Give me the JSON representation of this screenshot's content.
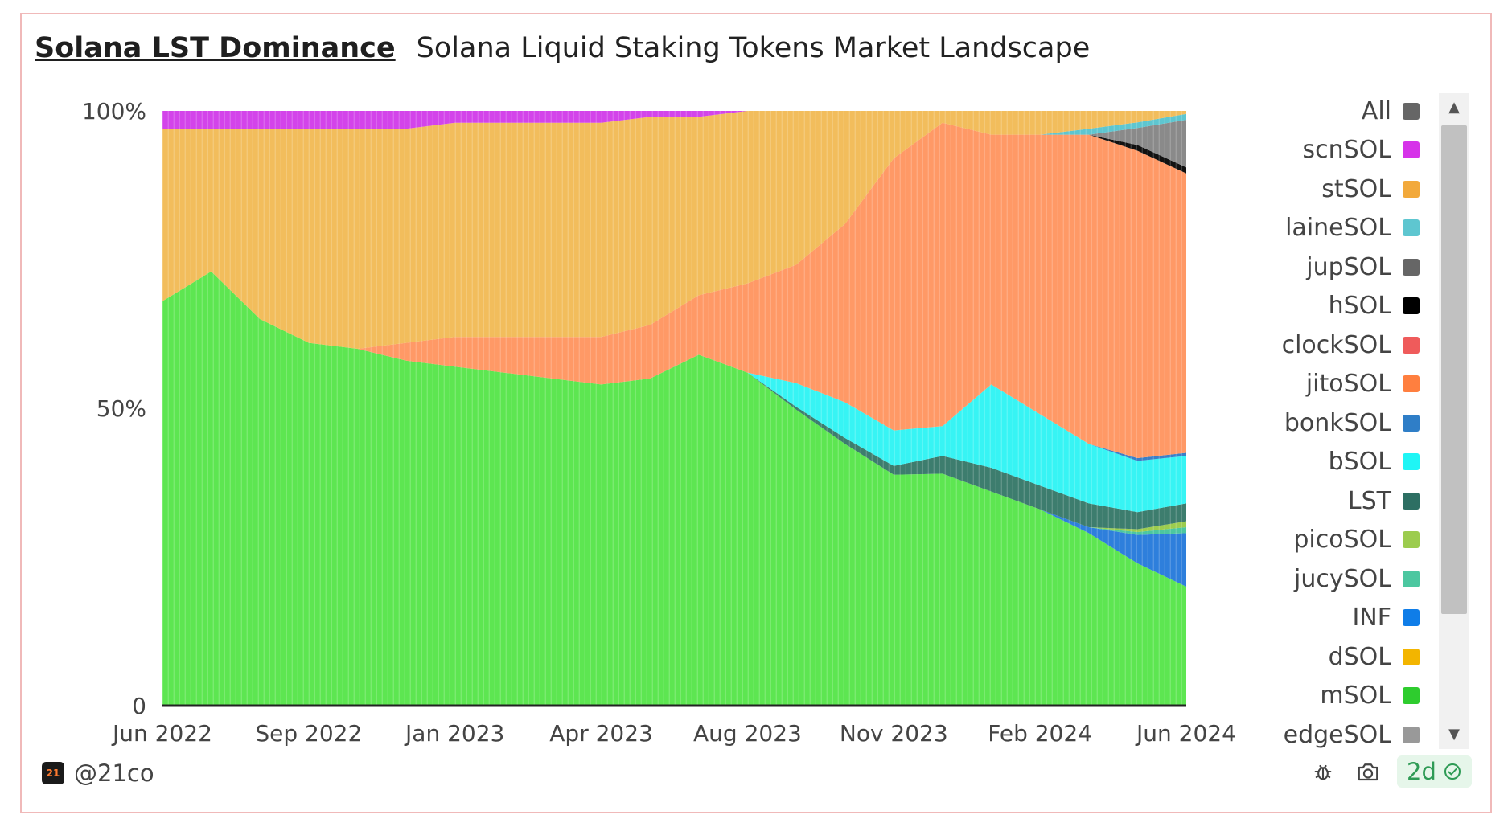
{
  "header": {
    "title": "Solana LST Dominance",
    "subtitle": "Solana Liquid Staking Tokens Market Landscape"
  },
  "chart_data": {
    "type": "area",
    "stacking": "percent",
    "title": "Solana LST Dominance",
    "subtitle": "Solana Liquid Staking Tokens Market Landscape",
    "xlabel": "",
    "ylabel": "",
    "ylim": [
      0,
      100
    ],
    "y_ticks": [
      "0",
      "50%",
      "100%"
    ],
    "y_tick_values": [
      0,
      50,
      100
    ],
    "x_tick_labels": [
      "Jun 2022",
      "Sep 2022",
      "Jan 2023",
      "Apr 2023",
      "Aug 2023",
      "Nov 2023",
      "Feb 2024",
      "Jun 2024"
    ],
    "x_tick_positions": [
      0,
      3,
      6,
      9,
      12,
      15,
      18,
      21
    ],
    "x": [
      "Jun 2022",
      "Jul 2022",
      "Aug 2022",
      "Sep 2022",
      "Oct 2022",
      "Dec 2022",
      "Jan 2023",
      "Feb 2023",
      "Mar 2023",
      "Apr 2023",
      "May 2023",
      "Jul 2023",
      "Aug 2023",
      "Sep 2023",
      "Oct 2023",
      "Nov 2023",
      "Dec 2023",
      "Jan 2024",
      "Feb 2024",
      "Mar 2024",
      "Apr 2024",
      "Jun 2024"
    ],
    "series": [
      {
        "name": "mSOL",
        "color": "#5de651",
        "values": [
          68,
          73,
          65,
          61,
          60,
          58,
          57,
          56,
          55,
          54,
          55,
          59,
          56,
          50,
          44,
          39,
          39,
          36,
          33,
          29,
          25,
          20
        ]
      },
      {
        "name": "INF",
        "color": "#2e7fdc",
        "values": [
          0,
          0,
          0,
          0,
          0,
          0,
          0,
          0,
          0,
          0,
          0,
          0,
          0,
          0,
          0,
          0,
          0,
          0,
          0,
          1,
          5,
          9
        ]
      },
      {
        "name": "jucySOL",
        "color": "#4cc7a0",
        "values": [
          0,
          0,
          0,
          0,
          0,
          0,
          0,
          0,
          0,
          0,
          0,
          0,
          0,
          0,
          0,
          0,
          0,
          0,
          0,
          0,
          0.5,
          1
        ]
      },
      {
        "name": "picoSOL",
        "color": "#9ccc4e",
        "values": [
          0,
          0,
          0,
          0,
          0,
          0,
          0,
          0,
          0,
          0,
          0,
          0,
          0,
          0,
          0,
          0,
          0,
          0,
          0,
          0,
          0.5,
          1
        ]
      },
      {
        "name": "LST",
        "color": "#3d7d6e",
        "values": [
          0,
          0,
          0,
          0,
          0,
          0,
          0,
          0,
          0,
          0,
          0,
          0,
          0,
          0.5,
          1,
          1.5,
          3,
          4,
          4,
          4,
          3,
          3
        ]
      },
      {
        "name": "bSOL",
        "color": "#37f4f4",
        "values": [
          0,
          0,
          0,
          0,
          0,
          0,
          0,
          0,
          0,
          0,
          0,
          0,
          0,
          4,
          6,
          6,
          5,
          14,
          12,
          10,
          9,
          8
        ]
      },
      {
        "name": "bonkSOL",
        "color": "#3b7fc7",
        "values": [
          0,
          0,
          0,
          0,
          0,
          0,
          0,
          0,
          0,
          0,
          0,
          0,
          0,
          0,
          0,
          0,
          0,
          0,
          0,
          0,
          0.5,
          0.5
        ]
      },
      {
        "name": "jitoSOL",
        "color": "#ff9966",
        "values": [
          0,
          0,
          0,
          0,
          0,
          3,
          5,
          6,
          7,
          8,
          9,
          10,
          15,
          20,
          30,
          46,
          51,
          42,
          47,
          52,
          54,
          47
        ]
      },
      {
        "name": "clockSOL",
        "color": "#ef5b5b",
        "values": [
          0,
          0,
          0,
          0,
          0,
          0,
          0,
          0,
          0,
          0,
          0,
          0,
          0,
          0,
          0,
          0,
          0,
          0,
          0,
          0,
          0,
          0
        ]
      },
      {
        "name": "hSOL",
        "color": "#111111",
        "values": [
          0,
          0,
          0,
          0,
          0,
          0,
          0,
          0,
          0,
          0,
          0,
          0,
          0,
          0,
          0,
          0,
          0,
          0,
          0,
          0,
          1,
          1
        ]
      },
      {
        "name": "jupSOL",
        "color": "#8a8a8a",
        "values": [
          0,
          0,
          0,
          0,
          0,
          0,
          0,
          0,
          0,
          0,
          0,
          0,
          0,
          0,
          0,
          0,
          0,
          0,
          0,
          0,
          3,
          8
        ]
      },
      {
        "name": "laineSOL",
        "color": "#5ec6d0",
        "values": [
          0,
          0,
          0,
          0,
          0,
          0,
          0,
          0,
          0,
          0,
          0,
          0,
          0,
          0,
          0,
          0,
          0,
          0,
          0,
          1,
          1,
          1
        ]
      },
      {
        "name": "stSOL",
        "color": "#f2bd5c",
        "values": [
          29,
          24,
          32,
          36,
          37,
          36,
          36,
          36,
          36,
          36,
          35,
          30,
          29,
          26,
          19,
          8,
          2,
          4,
          4,
          3,
          2,
          0.5
        ]
      },
      {
        "name": "scnSOL",
        "color": "#d344ea",
        "values": [
          3,
          3,
          3,
          3,
          3,
          3,
          2,
          2,
          2,
          2,
          1,
          1,
          0,
          0,
          0,
          0,
          0,
          0,
          0,
          0,
          0,
          0
        ]
      },
      {
        "name": "dSOL",
        "color": "#f3b500",
        "values": [
          0,
          0,
          0,
          0,
          0,
          0,
          0,
          0,
          0,
          0,
          0,
          0,
          0,
          0,
          0,
          0,
          0,
          0,
          0,
          0,
          0,
          0
        ]
      },
      {
        "name": "edgeSOL",
        "color": "#999999",
        "values": [
          0,
          0,
          0,
          0,
          0,
          0,
          0,
          0,
          0,
          0,
          0,
          0,
          0,
          0,
          0,
          0,
          0,
          0,
          0,
          0,
          0,
          0
        ]
      }
    ],
    "legend": {
      "position": "right",
      "items": [
        {
          "label": "All",
          "color": "#666666"
        },
        {
          "label": "scnSOL",
          "color": "#d633e9"
        },
        {
          "label": "stSOL",
          "color": "#f2a93b"
        },
        {
          "label": "laineSOL",
          "color": "#5ec6d0"
        },
        {
          "label": "jupSOL",
          "color": "#666666"
        },
        {
          "label": "hSOL",
          "color": "#000000"
        },
        {
          "label": "clockSOL",
          "color": "#ef5b5b"
        },
        {
          "label": "jitoSOL",
          "color": "#ff7f3f"
        },
        {
          "label": "bonkSOL",
          "color": "#2f7ec7"
        },
        {
          "label": "bSOL",
          "color": "#1ff5f5"
        },
        {
          "label": "LST",
          "color": "#2d6f63"
        },
        {
          "label": "picoSOL",
          "color": "#9ccc4e"
        },
        {
          "label": "jucySOL",
          "color": "#4cc7a0"
        },
        {
          "label": "INF",
          "color": "#0f7de8"
        },
        {
          "label": "dSOL",
          "color": "#f3b500"
        },
        {
          "label": "mSOL",
          "color": "#2ecc2e"
        },
        {
          "label": "edgeSOL",
          "color": "#999999"
        }
      ]
    }
  },
  "footer": {
    "author": "@21co",
    "author_logo_text": "21",
    "age_badge": "2d",
    "icons": [
      "bug-icon",
      "camera-icon",
      "check-circle-icon"
    ]
  }
}
